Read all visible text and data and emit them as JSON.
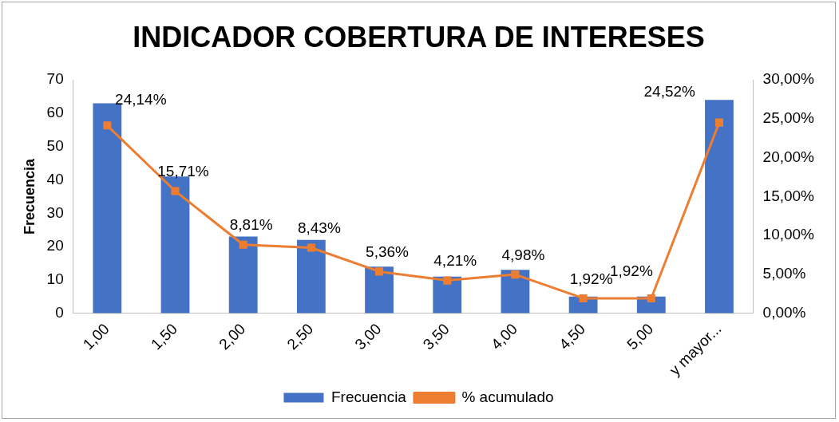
{
  "chart_data": {
    "type": "bar",
    "title": "INDICADOR COBERTURA DE INTERESES",
    "ylabel": "Frecuencia",
    "categories": [
      "1,00",
      "1,50",
      "2,00",
      "2,50",
      "3,00",
      "3,50",
      "4,00",
      "4,50",
      "5,00",
      "y mayor..."
    ],
    "series": [
      {
        "name": "Frecuencia",
        "color": "#4472c4",
        "values": [
          63,
          41,
          23,
          22,
          14,
          11,
          13,
          5,
          5,
          64
        ]
      },
      {
        "name": "% acumulado",
        "type": "line",
        "axis": "y2",
        "color": "#ed7d31",
        "marker": "square",
        "values": [
          24.14,
          15.71,
          8.81,
          8.43,
          5.36,
          4.21,
          4.98,
          1.92,
          1.92,
          24.52
        ],
        "value_labels": [
          "24,14%",
          "15,71%",
          "8,81%",
          "8,43%",
          "5,36%",
          "4,21%",
          "4,98%",
          "1,92%",
          "1,92%",
          "24,52%"
        ]
      }
    ],
    "ylim": [
      0,
      70
    ],
    "yticks": [
      0,
      10,
      20,
      30,
      40,
      50,
      60,
      70
    ],
    "y2lim": [
      0,
      30
    ],
    "y2ticks": [
      {
        "value": 0,
        "label": "0,00%"
      },
      {
        "value": 5,
        "label": "5,00%"
      },
      {
        "value": 10,
        "label": "10,00%"
      },
      {
        "value": 15,
        "label": "15,00%"
      },
      {
        "value": 20,
        "label": "20,00%"
      },
      {
        "value": 25,
        "label": "25,00%"
      },
      {
        "value": 30,
        "label": "30,00%"
      }
    ],
    "grid": false,
    "legend": "bottom"
  }
}
